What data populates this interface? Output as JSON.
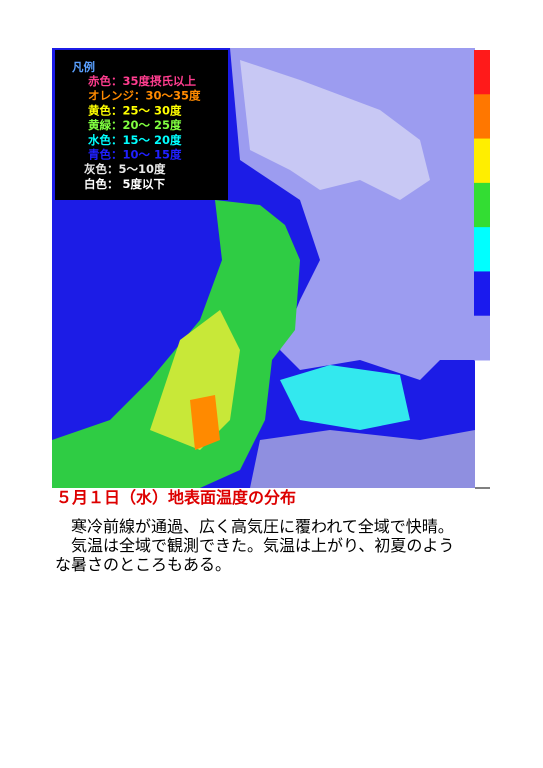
{
  "legend": {
    "title": "凡例",
    "items": [
      {
        "text": "赤色：35度摂氏以上",
        "color": "#ff3d8f"
      },
      {
        "text": "オレンジ：30〜35度",
        "color": "#ff8a00"
      },
      {
        "text": "黄色：25〜 30度",
        "color": "#ffff00"
      },
      {
        "text": "黄緑：20〜 25度",
        "color": "#80ff40"
      },
      {
        "text": "水色：15〜 20度",
        "color": "#00ffff"
      },
      {
        "text": "青色：10〜 15度",
        "color": "#2020ff"
      },
      {
        "text": "灰色：5〜10度",
        "color": "#e8e8e8"
      },
      {
        "text": "白色： 5度以下",
        "color": "#ffffff"
      }
    ]
  },
  "colorbar": [
    "#ff1a1a",
    "#ff7700",
    "#ffee00",
    "#33dd33",
    "#00ffff",
    "#1a1aee",
    "#9c9cf0"
  ],
  "caption": {
    "title": "５月１日（水）地表面温度の分布",
    "paragraphs": [
      "寒冷前線が通過、広く高気圧に覆われて全域で快晴。",
      "気温は全域で観測できた。気温は上がり、初夏のような暑さのところもある。"
    ]
  }
}
